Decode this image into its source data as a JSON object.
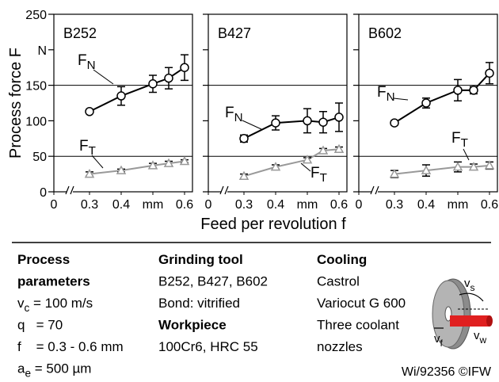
{
  "y_label": "Process force F",
  "x_label": "Feed per revolution f",
  "chart_data": [
    {
      "type": "line",
      "title": "B252",
      "x_break": true,
      "x": [
        0.3,
        0.4,
        0.5,
        0.55,
        0.6
      ],
      "xlim": [
        0.1875,
        0.625
      ],
      "xticks": [
        0,
        0.3,
        0.4,
        {
          "value": 0.5,
          "label": "mm"
        },
        0.6
      ],
      "ylim": [
        0,
        250
      ],
      "yticks": [
        0,
        50,
        100,
        150,
        {
          "value": 200,
          "label": "N"
        },
        250
      ],
      "grid_y": [
        50,
        150
      ],
      "series": [
        {
          "name": "F",
          "subscript": "N",
          "color": "#000000",
          "marker": "circle",
          "values": [
            113,
            135,
            152,
            160,
            175
          ],
          "errors": [
            2,
            13,
            12,
            15,
            18
          ]
        },
        {
          "name": "F",
          "subscript": "T",
          "color": "#999999",
          "marker": "triangle",
          "values": [
            25,
            30,
            37,
            40,
            43
          ],
          "errors": [
            3,
            2,
            3,
            3,
            2
          ]
        }
      ]
    },
    {
      "type": "line",
      "title": "B427",
      "x_break": true,
      "x": [
        0.3,
        0.4,
        0.5,
        0.55,
        0.6
      ],
      "xlim": [
        0.1875,
        0.625
      ],
      "xticks": [
        0,
        0.3,
        0.4,
        {
          "value": 0.5,
          "label": "mm"
        },
        0.6
      ],
      "ylim": [
        0,
        250
      ],
      "yticks": [
        0,
        50,
        100,
        150,
        {
          "value": 200,
          "label": "N"
        },
        250
      ],
      "grid_y": [
        50,
        150
      ],
      "series": [
        {
          "name": "F",
          "subscript": "N",
          "color": "#000000",
          "marker": "circle",
          "values": [
            75,
            97,
            100,
            98,
            105
          ],
          "errors": [
            5,
            10,
            17,
            15,
            20
          ]
        },
        {
          "name": "F",
          "subscript": "T",
          "color": "#999999",
          "marker": "triangle",
          "values": [
            22,
            35,
            45,
            58,
            60
          ],
          "errors": [
            3,
            3,
            3,
            3,
            3
          ]
        }
      ]
    },
    {
      "type": "line",
      "title": "B602",
      "x_break": true,
      "x": [
        0.3,
        0.4,
        0.5,
        0.55,
        0.6
      ],
      "xlim": [
        0.1875,
        0.625
      ],
      "xticks": [
        0,
        0.3,
        0.4,
        {
          "value": 0.5,
          "label": "mm"
        },
        0.6
      ],
      "ylim": [
        0,
        250
      ],
      "yticks": [
        0,
        50,
        100,
        150,
        {
          "value": 200,
          "label": "N"
        },
        250
      ],
      "grid_y": [
        50,
        150
      ],
      "series": [
        {
          "name": "F",
          "subscript": "N",
          "color": "#000000",
          "marker": "circle",
          "values": [
            97,
            125,
            143,
            143,
            167
          ],
          "errors": [
            3,
            7,
            15,
            5,
            15
          ]
        },
        {
          "name": "F",
          "subscript": "T",
          "color": "#999999",
          "marker": "triangle",
          "values": [
            25,
            30,
            35,
            35,
            37
          ],
          "errors": [
            5,
            8,
            7,
            4,
            5
          ]
        }
      ]
    }
  ],
  "footer": {
    "columns": [
      {
        "lines": [
          {
            "text": "Process",
            "bold": true
          },
          {
            "text": "parameters",
            "bold": true
          },
          {
            "parts": [
              "v",
              {
                "sub": "c"
              },
              " = 100 m/s"
            ]
          },
          {
            "text": "q   = 70"
          },
          {
            "text": "f    = 0.3 - 0.6 mm"
          },
          {
            "parts": [
              "a",
              {
                "sub": "e"
              },
              " = 500 µm"
            ]
          }
        ]
      },
      {
        "lines": [
          {
            "text": "Grinding tool",
            "bold": true
          },
          {
            "text": "B252, B427, B602"
          },
          {
            "text": "Bond: vitrified"
          },
          {
            "text": "Workpiece",
            "bold": true
          },
          {
            "text": "100Cr6, HRC 55"
          }
        ]
      },
      {
        "lines": [
          {
            "text": "Cooling",
            "bold": true
          },
          {
            "text": "Castrol"
          },
          {
            "text": "Variocut G 600"
          },
          {
            "text": "Three coolant"
          },
          {
            "text": "nozzles"
          }
        ]
      }
    ],
    "icon_labels": [
      {
        "text": "v",
        "sub": "s"
      },
      {
        "text": "v",
        "sub": "f"
      },
      {
        "text": "v",
        "sub": "w"
      }
    ],
    "credit": "Wi/92356 ©IFW"
  }
}
